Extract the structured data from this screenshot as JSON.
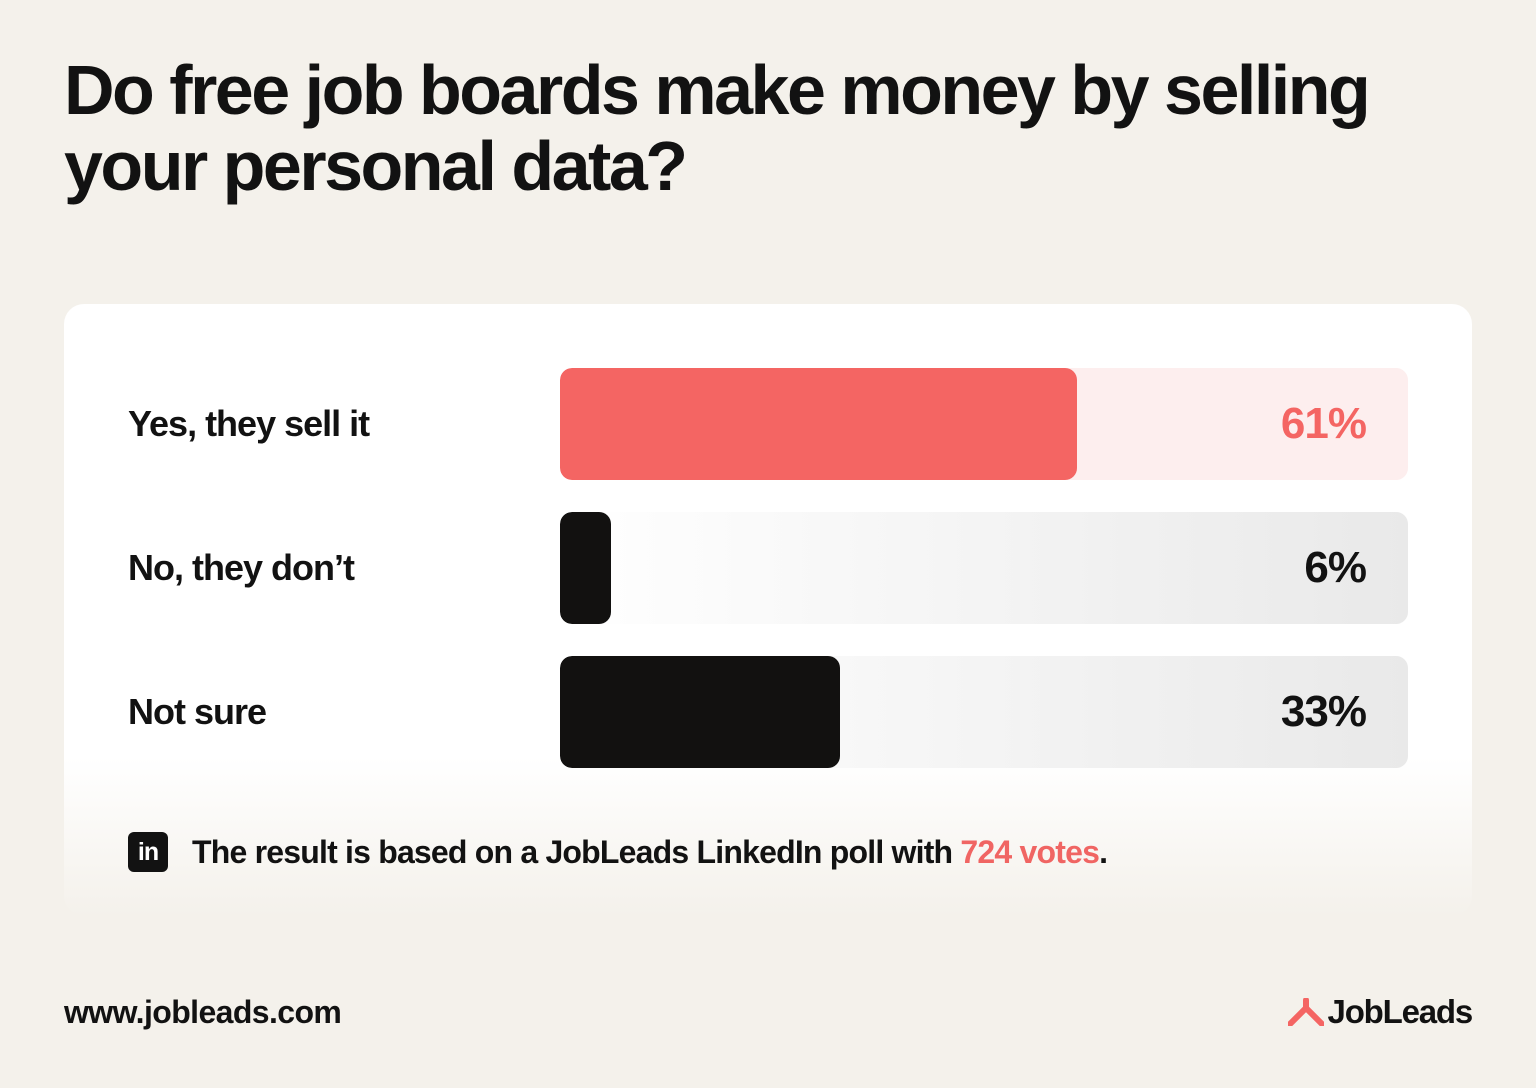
{
  "title": "Do free job boards make money by selling your personal data?",
  "chart_data": {
    "type": "bar",
    "orientation": "horizontal",
    "categories": [
      "Yes, they sell it",
      "No, they don’t",
      "Not sure"
    ],
    "values": [
      61,
      6,
      33
    ],
    "value_labels": [
      "61%",
      "6%",
      "33%"
    ],
    "xlim": [
      0,
      100
    ],
    "colors": [
      "#f46563",
      "#121110",
      "#121110"
    ],
    "grid": false
  },
  "note": {
    "icon": "linkedin-icon",
    "icon_text": "in",
    "text_before": "The result is based on a JobLeads LinkedIn poll with ",
    "votes": "724 votes",
    "text_after": "."
  },
  "footer": {
    "url": "www.jobleads.com",
    "brand": "JobLeads",
    "brand_color": "#f46563"
  }
}
